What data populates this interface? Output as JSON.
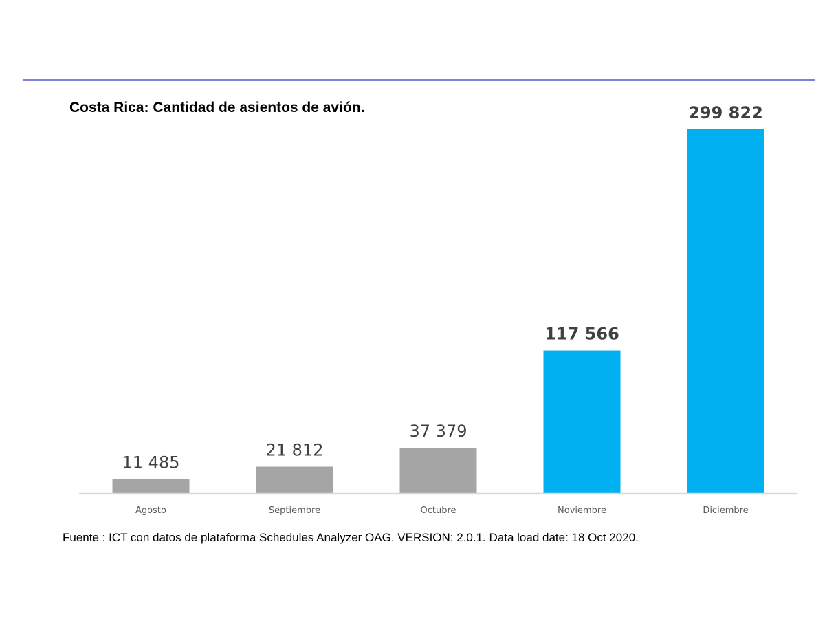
{
  "chart_data": {
    "type": "bar",
    "title": "Costa Rica: Cantidad de asientos de avión.",
    "xlabel": "",
    "ylabel": "",
    "categories": [
      "Agosto",
      "Septiembre",
      "Octubre",
      "Noviembre",
      "Diciembre"
    ],
    "values": [
      11485,
      21812,
      37379,
      117566,
      299822
    ],
    "value_labels": [
      "11 485",
      "21 812",
      "37 379",
      "117 566",
      "299 822"
    ],
    "bar_colors": [
      "#a5a5a5",
      "#a5a5a5",
      "#a5a5a5",
      "#00b0f0",
      "#00b0f0"
    ],
    "label_bold": [
      false,
      false,
      false,
      true,
      true
    ],
    "ylim": [
      0,
      299822
    ],
    "grid": false,
    "legend": "none"
  },
  "colors": {
    "rule": "#8080d8",
    "axis": "#d9d9d9",
    "label_text": "#404040",
    "tick_text": "#595959"
  },
  "source": "Fuente : ICT con datos de plataforma Schedules Analyzer OAG. VERSION: 2.0.1.  Data load date: 18 Oct 2020."
}
